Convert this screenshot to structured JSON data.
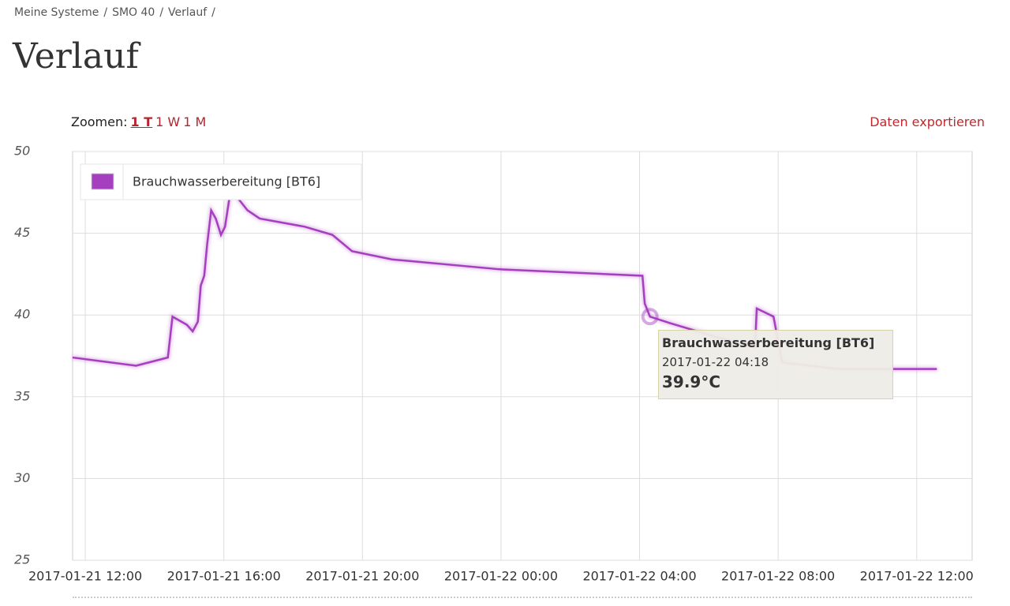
{
  "breadcrumb": [
    "Meine Systeme",
    "SMO 40",
    "Verlauf"
  ],
  "heading": "Verlauf",
  "zoom": {
    "label": "Zoomen:",
    "options": [
      "1 T",
      "1 W",
      "1 M"
    ]
  },
  "export": "Daten exportieren",
  "tooltip": {
    "title": "Brauchwasserbereitung [BT6]",
    "date": "2017-01-22 04:18",
    "value": "39.9°C"
  },
  "chart_data": {
    "type": "line",
    "x": [
      "2017-01-21 11:38",
      "2017-01-21 13:28",
      "2017-01-21 14:23",
      "2017-01-21 14:31",
      "2017-01-21 14:56",
      "2017-01-21 15:06",
      "2017-01-21 15:15",
      "2017-01-21 15:20",
      "2017-01-21 15:26",
      "2017-01-21 15:31",
      "2017-01-21 15:38",
      "2017-01-21 15:46",
      "2017-01-21 15:55",
      "2017-01-21 16:02",
      "2017-01-21 16:12",
      "2017-01-21 16:23",
      "2017-01-21 16:41",
      "2017-01-21 17:02",
      "2017-01-21 18:20",
      "2017-01-21 19:08",
      "2017-01-21 19:42",
      "2017-01-21 20:51",
      "2017-01-21 23:56",
      "2017-01-22 04:05",
      "2017-01-22 04:09",
      "2017-01-22 04:18",
      "2017-01-22 04:53",
      "2017-01-22 06:09",
      "2017-01-22 07:00",
      "2017-01-22 07:20",
      "2017-01-22 07:23",
      "2017-01-22 07:52",
      "2017-01-22 08:07",
      "2017-01-22 09:43",
      "2017-01-22 12:35"
    ],
    "series": [
      {
        "name": "Brauchwasserbereitung [BT6]",
        "color": "#a53fbf",
        "values": [
          37.4,
          36.9,
          37.4,
          39.9,
          39.4,
          39.0,
          39.6,
          41.8,
          42.4,
          44.3,
          46.4,
          45.9,
          44.9,
          45.4,
          47.7,
          47.2,
          46.4,
          45.9,
          45.4,
          44.9,
          43.9,
          43.4,
          42.8,
          42.4,
          40.7,
          39.9,
          39.5,
          38.7,
          38.2,
          38.0,
          40.4,
          39.9,
          37.1,
          36.7,
          36.7
        ]
      }
    ],
    "xlim": [
      "2017-01-21 11:38",
      "2017-01-22 13:36"
    ],
    "xticks": [
      "2017-01-21 12:00",
      "2017-01-21 16:00",
      "2017-01-21 20:00",
      "2017-01-22 00:00",
      "2017-01-22 04:00",
      "2017-01-22 08:00",
      "2017-01-22 12:00"
    ],
    "ylim": [
      25,
      50
    ],
    "yticks": [
      25,
      30,
      35,
      40,
      45,
      50
    ],
    "grid": true,
    "legend": "upper left"
  }
}
